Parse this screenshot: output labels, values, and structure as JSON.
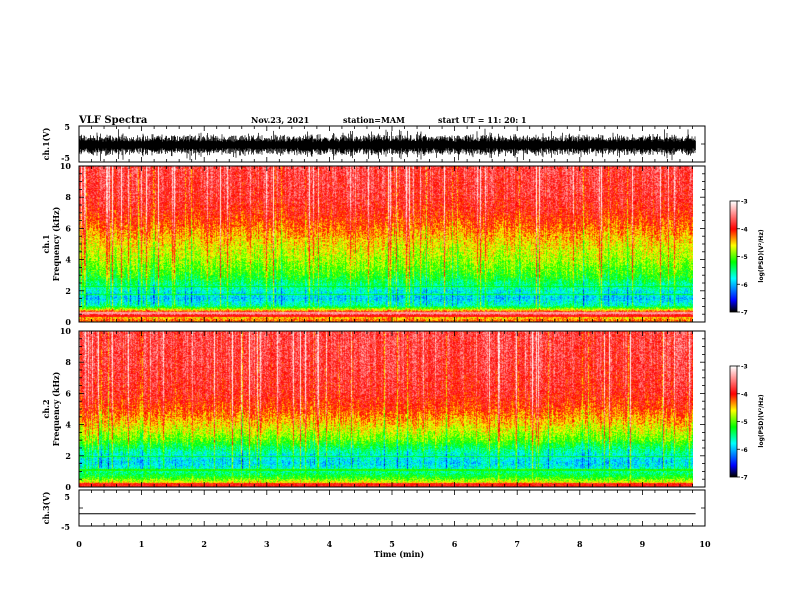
{
  "header": {
    "title": "VLF Spectra",
    "date": "Nov.23, 2021",
    "station": "station=MAM",
    "start": "start  UT  =   11: 20: 1"
  },
  "chart_data": [
    {
      "type": "line",
      "name": "waveform-ch1",
      "ylabel": "ch.1(V)",
      "ylim": [
        -5,
        5
      ],
      "yticks": [
        "5",
        "-5"
      ],
      "x_range_min": [
        0,
        9.85
      ],
      "description_of_signal": "dense noise waveform roughly between -3 and +3 V"
    },
    {
      "type": "heatmap",
      "name": "spectrogram-ch1",
      "ylabel_line1": "ch.1",
      "ylabel_line2": "Frequency (kHz)",
      "ylim": [
        0,
        10
      ],
      "yticks": [
        "0",
        "2",
        "4",
        "6",
        "8",
        "10"
      ],
      "x_range_min": [
        0,
        9.85
      ],
      "colorbar": {
        "label": "log(PSD)(V²/Hz)",
        "range": [
          -7,
          -3
        ],
        "ticks": [
          "-3",
          "-4",
          "-5",
          "-6",
          "-7"
        ],
        "colors": [
          "#000000",
          "#0000ff",
          "#00ffff",
          "#00ff00",
          "#ffff00",
          "#ff0000",
          "#ffffff"
        ]
      },
      "profile": [
        {
          "f": 0.0,
          "level": 0.7
        },
        {
          "f": 0.3,
          "level": 0.62
        },
        {
          "f": 0.5,
          "level": 0.88
        },
        {
          "f": 0.8,
          "level": 0.55
        },
        {
          "f": 1.0,
          "level": 0.36
        },
        {
          "f": 1.5,
          "level": 0.27
        },
        {
          "f": 2.0,
          "level": 0.33
        },
        {
          "f": 2.5,
          "level": 0.4
        },
        {
          "f": 3.0,
          "level": 0.47
        },
        {
          "f": 4.0,
          "level": 0.55
        },
        {
          "f": 5.0,
          "level": 0.61
        },
        {
          "f": 6.0,
          "level": 0.69
        },
        {
          "f": 7.0,
          "level": 0.76
        },
        {
          "f": 8.0,
          "level": 0.8
        },
        {
          "f": 10.0,
          "level": 0.82
        }
      ]
    },
    {
      "type": "heatmap",
      "name": "spectrogram-ch2",
      "ylabel_line1": "ch.2",
      "ylabel_line2": "Frequency (kHz)",
      "ylim": [
        0,
        10
      ],
      "yticks": [
        "0",
        "2",
        "4",
        "6",
        "8",
        "10"
      ],
      "x_range_min": [
        0,
        9.85
      ],
      "colorbar": {
        "label": "log(PSD)(V²/Hz)",
        "range": [
          -7,
          -3
        ],
        "ticks": [
          "-3",
          "-4",
          "-5",
          "-6",
          "-7"
        ],
        "colors": [
          "#000000",
          "#0000ff",
          "#00ffff",
          "#00ff00",
          "#ffff00",
          "#ff0000",
          "#ffffff"
        ]
      },
      "profile": [
        {
          "f": 0.0,
          "level": 0.72
        },
        {
          "f": 0.3,
          "level": 0.58
        },
        {
          "f": 0.6,
          "level": 0.45
        },
        {
          "f": 1.0,
          "level": 0.36
        },
        {
          "f": 1.5,
          "level": 0.28
        },
        {
          "f": 2.0,
          "level": 0.32
        },
        {
          "f": 2.5,
          "level": 0.4
        },
        {
          "f": 3.0,
          "level": 0.5
        },
        {
          "f": 4.0,
          "level": 0.62
        },
        {
          "f": 5.0,
          "level": 0.72
        },
        {
          "f": 6.0,
          "level": 0.78
        },
        {
          "f": 8.0,
          "level": 0.81
        },
        {
          "f": 10.0,
          "level": 0.82
        }
      ]
    },
    {
      "type": "line",
      "name": "waveform-ch3",
      "ylabel": "ch.3(V)",
      "ylim": [
        -5,
        5
      ],
      "yticks": [
        "5",
        "-5"
      ],
      "x_range_min": [
        0,
        9.85
      ],
      "y_value": -1.6
    }
  ],
  "xaxis": {
    "label": "Time  (min)",
    "range": [
      0,
      10
    ],
    "ticks": [
      "0",
      "1",
      "2",
      "3",
      "4",
      "5",
      "6",
      "7",
      "8",
      "9",
      "10"
    ]
  }
}
